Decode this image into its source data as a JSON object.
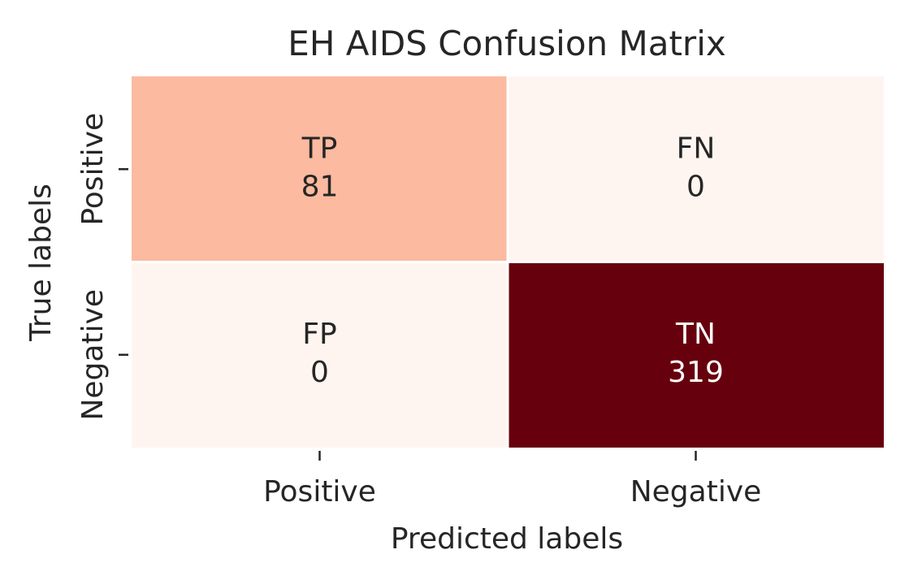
{
  "chart_data": {
    "type": "heatmap",
    "title": "EH AIDS Confusion Matrix",
    "xlabel": "Predicted labels",
    "ylabel": "True labels",
    "x_categories": [
      "Positive",
      "Negative"
    ],
    "y_categories": [
      "Positive",
      "Negative"
    ],
    "cells": [
      [
        {
          "label": "TP",
          "value": 81
        },
        {
          "label": "FN",
          "value": 0
        }
      ],
      [
        {
          "label": "FP",
          "value": 0
        },
        {
          "label": "TN",
          "value": 319
        }
      ]
    ],
    "vmin": 0,
    "vmax": 319,
    "colormap": "Reds",
    "colors": {
      "low": "#fff5f0",
      "high": "#67000d",
      "dark_text": "#262626",
      "light_text": "#ffffff"
    }
  }
}
